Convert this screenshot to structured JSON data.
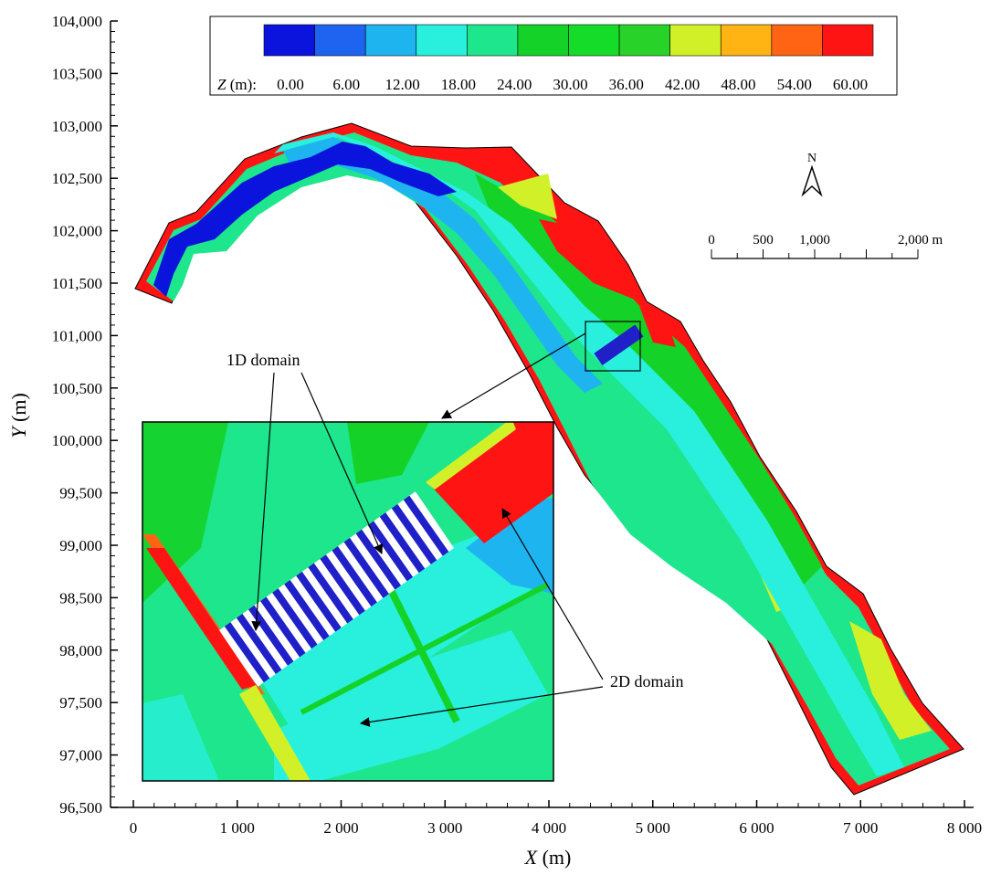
{
  "figure": {
    "x_axis": {
      "title_var": "X",
      "title_unit": " (m)",
      "range": [
        0,
        8000
      ],
      "ticks": [
        {
          "value": 0,
          "label": "0"
        },
        {
          "value": 1000,
          "label": "1 000"
        },
        {
          "value": 2000,
          "label": "2 000"
        },
        {
          "value": 3000,
          "label": "3 000"
        },
        {
          "value": 4000,
          "label": "4 000"
        },
        {
          "value": 5000,
          "label": "5 000"
        },
        {
          "value": 6000,
          "label": "6 000"
        },
        {
          "value": 7000,
          "label": "7 000"
        },
        {
          "value": 8000,
          "label": "8 000"
        }
      ]
    },
    "y_axis": {
      "title_var": "Y",
      "title_unit": " (m)",
      "range": [
        96500,
        104000
      ],
      "ticks": [
        {
          "value": 96500,
          "label": "96,500"
        },
        {
          "value": 97000,
          "label": "97,000"
        },
        {
          "value": 97500,
          "label": "97,500"
        },
        {
          "value": 98000,
          "label": "98,000"
        },
        {
          "value": 98500,
          "label": "98,500"
        },
        {
          "value": 99000,
          "label": "99,000"
        },
        {
          "value": 99500,
          "label": "99,500"
        },
        {
          "value": 100000,
          "label": "100,000"
        },
        {
          "value": 100500,
          "label": "100,500"
        },
        {
          "value": 101000,
          "label": "101,000"
        },
        {
          "value": 101500,
          "label": "101,500"
        },
        {
          "value": 102000,
          "label": "102,000"
        },
        {
          "value": 102500,
          "label": "102,500"
        },
        {
          "value": 103000,
          "label": "103,000"
        },
        {
          "value": 103500,
          "label": "103,500"
        },
        {
          "value": 104000,
          "label": "104,000"
        }
      ]
    },
    "legend": {
      "var": "Z",
      "unit": " (m): ",
      "ticks": [
        "0.00",
        "6.00",
        "12.00",
        "18.00",
        "24.00",
        "30.00",
        "36.00",
        "42.00",
        "48.00",
        "54.00",
        "60.00"
      ],
      "colors": [
        "#0a14dc",
        "#1e64f0",
        "#1eb4f0",
        "#28f0dc",
        "#1ee68c",
        "#14d228",
        "#14dc28",
        "#28d228",
        "#d2f028",
        "#ffb414",
        "#ff6414",
        "#ff1414"
      ]
    },
    "north_arrow": {
      "label": "N"
    },
    "scale_bar": {
      "labels": [
        "0",
        "500",
        "1,000",
        "2,000 m"
      ],
      "marks": [
        0,
        500,
        1000,
        2000
      ]
    },
    "annotations": {
      "one_d": "1D domain",
      "two_d": "2D domain"
    }
  }
}
